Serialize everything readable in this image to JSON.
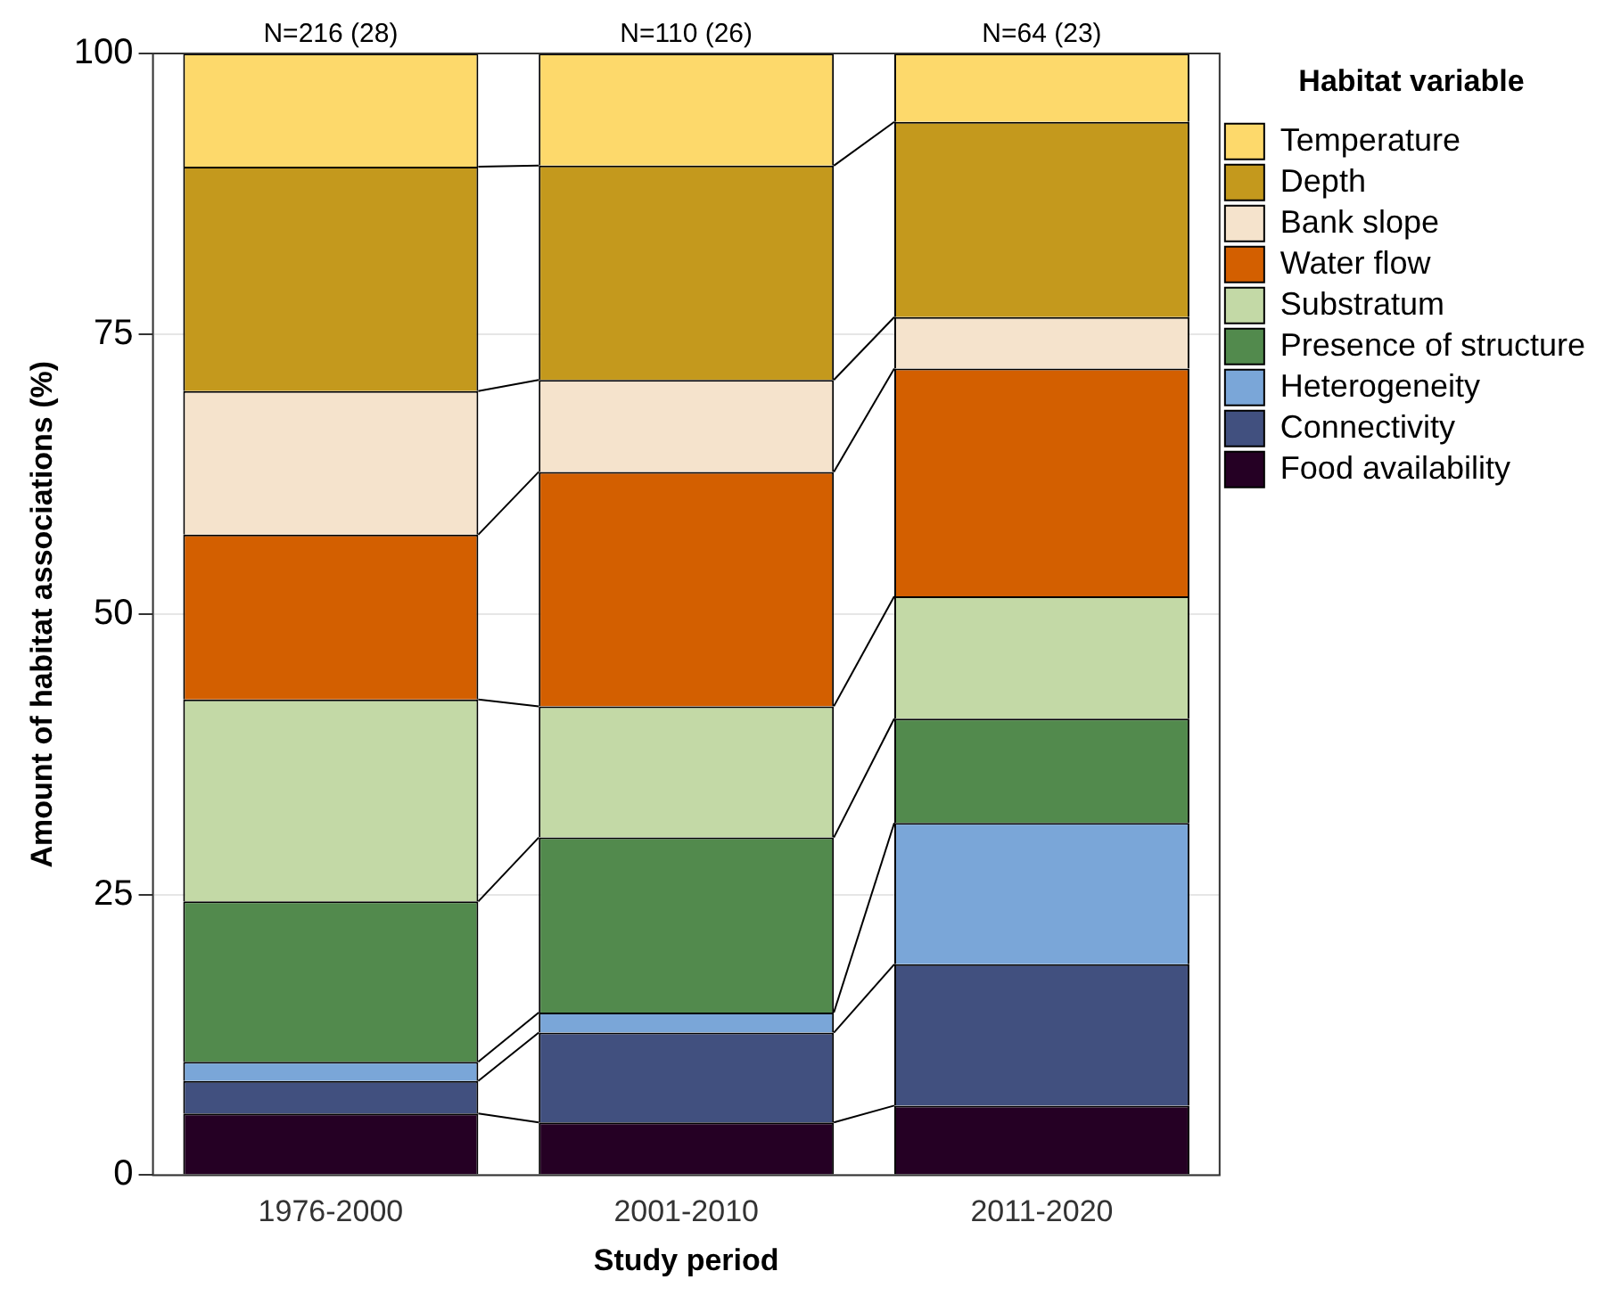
{
  "chart_data": {
    "type": "bar",
    "stacked": true,
    "xlabel": "Study period",
    "ylabel": "Amount of habitat associations (%)",
    "legend_title": "Habitat variable",
    "categories": [
      "1976-2000",
      "2001-2010",
      "2011-2020"
    ],
    "series": [
      {
        "name": "Food availability",
        "color": "#250024",
        "values": [
          5.5,
          4.7,
          6.2
        ]
      },
      {
        "name": "Connectivity",
        "color": "#41507f",
        "values": [
          2.9,
          8.0,
          12.6
        ]
      },
      {
        "name": "Heterogeneity",
        "color": "#7aa6d8",
        "values": [
          1.7,
          1.8,
          12.6
        ]
      },
      {
        "name": "Presence of structure",
        "color": "#528a4d",
        "values": [
          14.3,
          15.6,
          9.3
        ]
      },
      {
        "name": "Substratum",
        "color": "#c3d9a6",
        "values": [
          18.0,
          11.7,
          10.9
        ]
      },
      {
        "name": "Water flow",
        "color": "#d35f00",
        "values": [
          14.7,
          20.9,
          20.3
        ]
      },
      {
        "name": "Bank slope",
        "color": "#f5e3cc",
        "values": [
          12.8,
          8.2,
          4.6
        ]
      },
      {
        "name": "Depth",
        "color": "#c4991d",
        "values": [
          20.0,
          19.1,
          17.4
        ]
      },
      {
        "name": "Temperature",
        "color": "#fdd96b",
        "values": [
          10.1,
          10.0,
          6.1
        ]
      }
    ],
    "ylim": [
      0,
      100
    ],
    "yticks": [
      0,
      25,
      50,
      75,
      100
    ],
    "grid": "y",
    "legend": "right",
    "annotations": [
      "N=216 (28)",
      "N=110 (26)",
      "N=64 (23)"
    ]
  }
}
